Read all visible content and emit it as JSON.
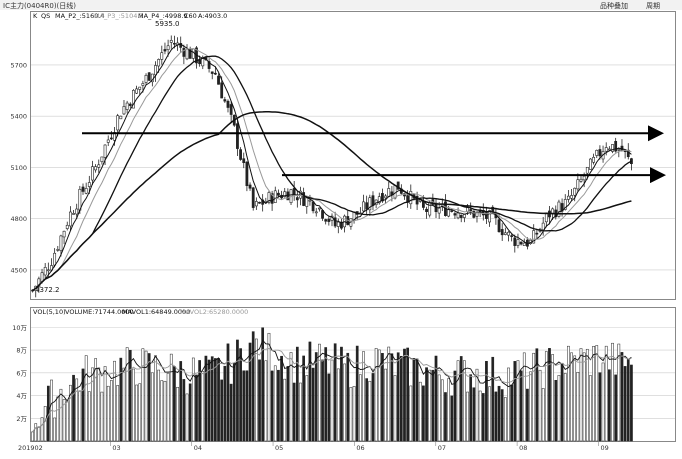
{
  "window": {
    "title": "IC主力(0404R0)(日线)",
    "buttons": [
      "品种叠加",
      "周期"
    ]
  },
  "indicator_bar": {
    "letter": "K",
    "qs": "QS",
    "ma_p2": "MA_P2_:5160.4",
    "ma_p3": "MA_P3_:5104.3",
    "ma_p4": "MA_P4_:4998.9",
    "c60": "C60",
    "a": "A:4903.0"
  },
  "volume_bar": {
    "vol_label": "VOL(5,10)",
    "volume": "VOLUME:71744.0000",
    "mavol1": "MAVOL1:64849.0000",
    "mavol2": "MAVOL2:65280.0000"
  },
  "x_axis": {
    "start_label": "201902",
    "month_labels": [
      "03",
      "04",
      "05",
      "06",
      "07",
      "08",
      "09"
    ]
  },
  "annotations": {
    "high_label": "5935.0",
    "low_label": "4372.2"
  },
  "colors": {
    "up_candle": "#ffffff",
    "down_candle": "#222222",
    "candle_outline": "#222222",
    "ma_dark": "#111111",
    "ma_light": "#999999",
    "trend_arrow": "#000000",
    "grid": "#cccccc"
  },
  "chart_data": [
    {
      "type": "candlestick",
      "title": "IC主力(0404R0)(日线)",
      "y_ticks": [
        4500,
        4800,
        5100,
        5400,
        5700
      ],
      "ylim": [
        4330,
        6010
      ],
      "x_range": [
        "2019-02",
        "2019-09"
      ],
      "grid": true,
      "high": 5935.0,
      "low": 4372.2,
      "close_series_approx": [
        {
          "t": 0,
          "v": 4380
        },
        {
          "t": 6,
          "v": 4560
        },
        {
          "t": 12,
          "v": 4830
        },
        {
          "t": 20,
          "v": 5100
        },
        {
          "t": 28,
          "v": 5430
        },
        {
          "t": 36,
          "v": 5620
        },
        {
          "t": 44,
          "v": 5840
        },
        {
          "t": 52,
          "v": 5740
        },
        {
          "t": 58,
          "v": 5650
        },
        {
          "t": 64,
          "v": 5320
        },
        {
          "t": 70,
          "v": 4860
        },
        {
          "t": 76,
          "v": 4930
        },
        {
          "t": 82,
          "v": 4960
        },
        {
          "t": 90,
          "v": 4880
        },
        {
          "t": 96,
          "v": 4760
        },
        {
          "t": 104,
          "v": 4840
        },
        {
          "t": 110,
          "v": 4940
        },
        {
          "t": 116,
          "v": 4990
        },
        {
          "t": 124,
          "v": 4850
        },
        {
          "t": 132,
          "v": 4860
        },
        {
          "t": 140,
          "v": 4830
        },
        {
          "t": 146,
          "v": 4800
        },
        {
          "t": 152,
          "v": 4680
        },
        {
          "t": 158,
          "v": 4660
        },
        {
          "t": 164,
          "v": 4830
        },
        {
          "t": 170,
          "v": 4900
        },
        {
          "t": 176,
          "v": 5080
        },
        {
          "t": 182,
          "v": 5240
        },
        {
          "t": 187,
          "v": 5200
        },
        {
          "t": 190,
          "v": 5120
        }
      ],
      "moving_averages": [
        {
          "name": "MA_P2_",
          "last": 5160.4
        },
        {
          "name": "MA_P3_",
          "last": 5104.3
        },
        {
          "name": "MA_P4_",
          "last": 4998.9
        },
        {
          "name": "A",
          "last": 4903.0
        }
      ],
      "trendlines": [
        {
          "from_v": 5300,
          "to_v": 5300,
          "style": "arrow"
        },
        {
          "from_v": 5055,
          "to_v": 5055,
          "style": "arrow"
        }
      ]
    },
    {
      "type": "bar",
      "title": "VOL(5,10)",
      "y_ticks_labels": [
        "2万",
        "4万",
        "6万",
        "8万",
        "10万"
      ],
      "y_ticks": [
        20000,
        40000,
        60000,
        80000,
        100000
      ],
      "ylim": [
        0,
        110000
      ],
      "series": [
        {
          "name": "VOLUME",
          "last": 71744.0
        },
        {
          "name": "MAVOL1",
          "last": 64849.0
        },
        {
          "name": "MAVOL2",
          "last": 65280.0
        }
      ],
      "volume_series_approx": [
        {
          "t": 0,
          "v": 18000
        },
        {
          "t": 8,
          "v": 42000
        },
        {
          "t": 16,
          "v": 58000
        },
        {
          "t": 24,
          "v": 62000
        },
        {
          "t": 32,
          "v": 66000
        },
        {
          "t": 40,
          "v": 64000
        },
        {
          "t": 48,
          "v": 60000
        },
        {
          "t": 56,
          "v": 58000
        },
        {
          "t": 64,
          "v": 70000
        },
        {
          "t": 70,
          "v": 86000
        },
        {
          "t": 76,
          "v": 78000
        },
        {
          "t": 84,
          "v": 68000
        },
        {
          "t": 92,
          "v": 70000
        },
        {
          "t": 100,
          "v": 64000
        },
        {
          "t": 108,
          "v": 72000
        },
        {
          "t": 116,
          "v": 66000
        },
        {
          "t": 124,
          "v": 62000
        },
        {
          "t": 132,
          "v": 58000
        },
        {
          "t": 140,
          "v": 60000
        },
        {
          "t": 148,
          "v": 56000
        },
        {
          "t": 156,
          "v": 60000
        },
        {
          "t": 164,
          "v": 66000
        },
        {
          "t": 172,
          "v": 70000
        },
        {
          "t": 180,
          "v": 74000
        },
        {
          "t": 187,
          "v": 68000
        },
        {
          "t": 190,
          "v": 72000
        }
      ]
    }
  ]
}
